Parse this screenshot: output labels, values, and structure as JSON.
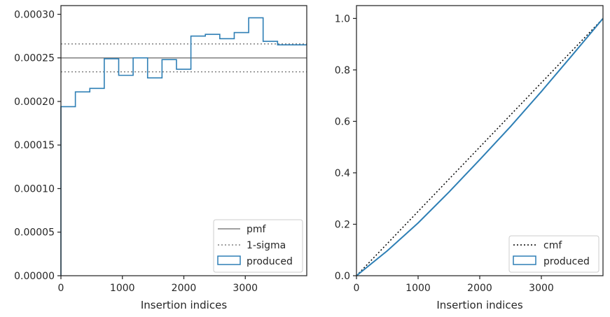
{
  "colors": {
    "produced": "#2e7fb5",
    "pmf": "#808080",
    "sigma": "#808080",
    "cmf": "#000000",
    "axes": "#262626"
  },
  "chart_data": [
    {
      "type": "step",
      "xlabel": "Insertion indices",
      "ylabel": "",
      "xlim": [
        0,
        4000
      ],
      "ylim": [
        0,
        0.00031
      ],
      "x_ticks": [
        0,
        1000,
        2000,
        3000
      ],
      "x_tick_labels": [
        "0",
        "1000",
        "2000",
        "3000"
      ],
      "y_ticks": [
        0,
        5e-05,
        0.0001,
        0.00015,
        0.0002,
        0.00025,
        0.0003
      ],
      "y_tick_labels": [
        "0.00000",
        "0.00005",
        "0.00010",
        "0.00015",
        "0.00020",
        "0.00025",
        "0.00030"
      ],
      "legend_position": "lower right",
      "legend": [
        "pmf",
        "1-sigma",
        "produced"
      ],
      "pmf": 0.00025,
      "sigma_band": [
        0.000234,
        0.000266
      ],
      "produced": {
        "name": "produced",
        "bin_edges": [
          0,
          235,
          470,
          705,
          940,
          1175,
          1410,
          1645,
          1880,
          2115,
          2350,
          2585,
          2820,
          3055,
          3290,
          3525,
          4000
        ],
        "values": [
          0.000194,
          0.000211,
          0.000215,
          0.000249,
          0.00023,
          0.00025,
          0.000227,
          0.000248,
          0.000237,
          0.000275,
          0.000277,
          0.000272,
          0.000279,
          0.000296,
          0.000269,
          0.000265
        ]
      }
    },
    {
      "type": "line",
      "xlabel": "Insertion indices",
      "ylabel": "",
      "xlim": [
        0,
        4000
      ],
      "ylim": [
        0,
        1.05
      ],
      "x_ticks": [
        0,
        1000,
        2000,
        3000
      ],
      "x_tick_labels": [
        "0",
        "1000",
        "2000",
        "3000"
      ],
      "y_ticks": [
        0,
        0.2,
        0.4,
        0.6,
        0.8,
        1.0
      ],
      "y_tick_labels": [
        "0.0",
        "0.2",
        "0.4",
        "0.6",
        "0.8",
        "1.0"
      ],
      "legend_position": "lower right",
      "legend": [
        "cmf",
        "produced"
      ],
      "cmf": {
        "name": "cmf",
        "x": [
          0,
          4000
        ],
        "y": [
          0,
          1.0
        ]
      },
      "produced": {
        "name": "produced",
        "x": [
          0,
          500,
          1000,
          1500,
          2000,
          2500,
          3000,
          3500,
          4000
        ],
        "y": [
          0,
          0.097,
          0.205,
          0.325,
          0.451,
          0.58,
          0.716,
          0.857,
          1.0
        ]
      }
    }
  ]
}
